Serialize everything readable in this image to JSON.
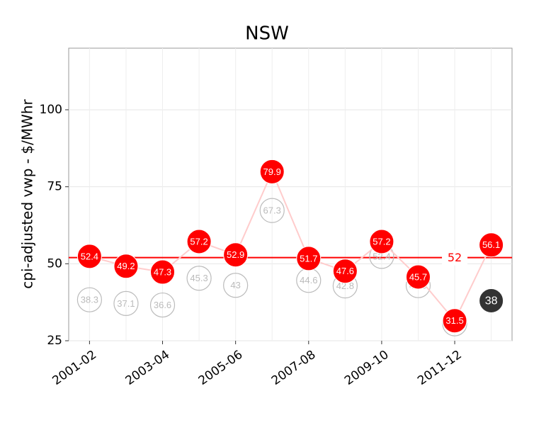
{
  "chart_data": {
    "type": "line",
    "title": "NSW",
    "y_label": "cpi-adjusted vwp - $/MWhr",
    "categories": [
      "2001-02",
      null,
      "2003-04",
      null,
      "2005-06",
      null,
      "2007-08",
      null,
      "2009-10",
      null,
      "2011-12",
      null
    ],
    "series": [
      {
        "color": "#bbbbbb",
        "values": [
          38.3,
          37.1,
          36.6,
          45.3,
          43,
          67.3,
          44.6,
          42.8,
          52.4,
          42.9,
          30.5,
          null
        ]
      },
      {
        "color": "#ff0000",
        "line_color": "#ffcccc",
        "values": [
          52.4,
          49.2,
          47.3,
          57.2,
          52.9,
          79.9,
          51.7,
          47.6,
          57.2,
          45.7,
          31.5,
          56.1
        ]
      },
      {
        "color": "#333333",
        "values": [
          null,
          null,
          null,
          null,
          null,
          null,
          null,
          null,
          null,
          null,
          null,
          38
        ]
      }
    ],
    "reference_line": {
      "value": 52,
      "color": "#ff0000"
    },
    "ylim": [
      25,
      120
    ],
    "yticks": [
      25,
      50,
      75,
      100
    ],
    "grid": true
  }
}
